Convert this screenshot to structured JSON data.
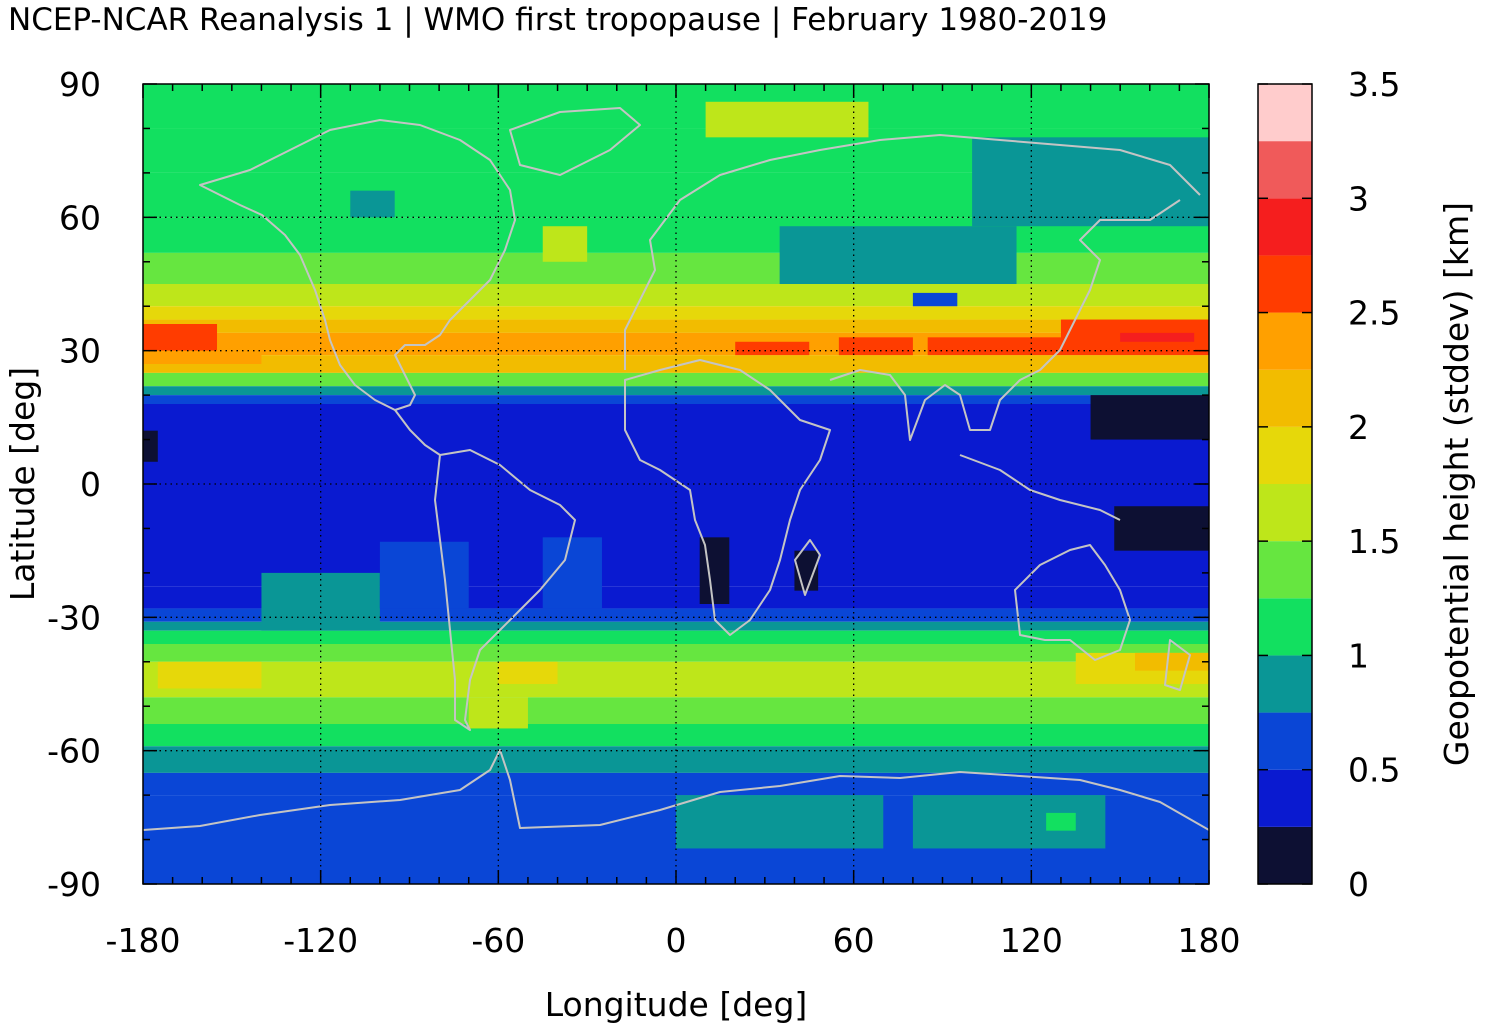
{
  "chart_data": {
    "type": "heatmap",
    "title": "NCEP-NCAR Reanalysis 1 | WMO first tropopause | February 1980-2019",
    "xlabel": "Longitude [deg]",
    "ylabel": "Latitude [deg]",
    "colorbar_label": "Geopotential height (stddev) [km]",
    "xlim": [
      -180,
      180
    ],
    "ylim": [
      -90,
      90
    ],
    "x_ticks": [
      "-180",
      "-120",
      "-60",
      "0",
      "60",
      "120",
      "180"
    ],
    "y_ticks": [
      "90",
      "60",
      "30",
      "0",
      "-30",
      "-60",
      "-90"
    ],
    "colorbar_ticks": [
      "3.5",
      "3",
      "2.5",
      "2",
      "1.5",
      "1",
      "0.5",
      "0"
    ],
    "colorbar_range": [
      0,
      3.5
    ],
    "colorbar_levels": [
      {
        "range": [
          0.0,
          0.25
        ],
        "color": "#0d1033"
      },
      {
        "range": [
          0.25,
          0.5
        ],
        "color": "#0a1ad0"
      },
      {
        "range": [
          0.5,
          0.75
        ],
        "color": "#0a46d6"
      },
      {
        "range": [
          0.75,
          1.0
        ],
        "color": "#0a9696"
      },
      {
        "range": [
          1.0,
          1.25
        ],
        "color": "#12e060"
      },
      {
        "range": [
          1.25,
          1.5
        ],
        "color": "#66e640"
      },
      {
        "range": [
          1.5,
          1.75
        ],
        "color": "#bee61a"
      },
      {
        "range": [
          1.75,
          2.0
        ],
        "color": "#e6d80a"
      },
      {
        "range": [
          2.0,
          2.25
        ],
        "color": "#f2bc00"
      },
      {
        "range": [
          2.25,
          2.5
        ],
        "color": "#ffa000"
      },
      {
        "range": [
          2.5,
          2.75
        ],
        "color": "#ff3c00"
      },
      {
        "range": [
          2.75,
          3.0
        ],
        "color": "#f51e1e"
      },
      {
        "range": [
          3.0,
          3.25
        ],
        "color": "#f05a5a"
      },
      {
        "range": [
          3.25,
          3.5
        ],
        "color": "#ffcccc"
      }
    ],
    "zonal_bands": [
      {
        "lat": [
          80,
          90
        ],
        "value": 1.1
      },
      {
        "lat": [
          70,
          80
        ],
        "value": 1.15
      },
      {
        "lat": [
          60,
          70
        ],
        "value": 1.2
      },
      {
        "lat": [
          52,
          60
        ],
        "value": 1.15
      },
      {
        "lat": [
          45,
          52
        ],
        "value": 1.3
      },
      {
        "lat": [
          40,
          45
        ],
        "value": 1.6
      },
      {
        "lat": [
          37,
          40
        ],
        "value": 1.9
      },
      {
        "lat": [
          34,
          37
        ],
        "value": 2.1
      },
      {
        "lat": [
          29,
          34
        ],
        "value": 2.4
      },
      {
        "lat": [
          25,
          29
        ],
        "value": 2.05
      },
      {
        "lat": [
          22,
          25
        ],
        "value": 1.4
      },
      {
        "lat": [
          20,
          22
        ],
        "value": 0.85
      },
      {
        "lat": [
          18,
          20
        ],
        "value": 0.6
      },
      {
        "lat": [
          -23,
          18
        ],
        "value": 0.4
      },
      {
        "lat": [
          -28,
          -23
        ],
        "value": 0.45
      },
      {
        "lat": [
          -31,
          -28
        ],
        "value": 0.6
      },
      {
        "lat": [
          -33,
          -31
        ],
        "value": 0.85
      },
      {
        "lat": [
          -36,
          -33
        ],
        "value": 1.15
      },
      {
        "lat": [
          -40,
          -36
        ],
        "value": 1.4
      },
      {
        "lat": [
          -48,
          -40
        ],
        "value": 1.6
      },
      {
        "lat": [
          -54,
          -48
        ],
        "value": 1.4
      },
      {
        "lat": [
          -59,
          -54
        ],
        "value": 1.15
      },
      {
        "lat": [
          -65,
          -59
        ],
        "value": 0.9
      },
      {
        "lat": [
          -70,
          -65
        ],
        "value": 0.6
      },
      {
        "lat": [
          -90,
          -70
        ],
        "value": 0.55
      }
    ],
    "regional_features": [
      {
        "lon": [
          -180,
          -155
        ],
        "lat": [
          30,
          36
        ],
        "value": 2.6
      },
      {
        "lon": [
          -180,
          -140
        ],
        "lat": [
          27,
          30
        ],
        "value": 2.3
      },
      {
        "lon": [
          20,
          45
        ],
        "lat": [
          29,
          32
        ],
        "value": 2.6
      },
      {
        "lon": [
          55,
          80
        ],
        "lat": [
          29,
          33
        ],
        "value": 2.6
      },
      {
        "lon": [
          85,
          130
        ],
        "lat": [
          29,
          33
        ],
        "value": 2.6
      },
      {
        "lon": [
          130,
          180
        ],
        "lat": [
          29,
          37
        ],
        "value": 2.6
      },
      {
        "lon": [
          150,
          175
        ],
        "lat": [
          32,
          34
        ],
        "value": 2.9
      },
      {
        "lon": [
          35,
          115
        ],
        "lat": [
          45,
          58
        ],
        "value": 0.85
      },
      {
        "lon": [
          100,
          180
        ],
        "lat": [
          58,
          78
        ],
        "value": 0.9
      },
      {
        "lon": [
          80,
          95
        ],
        "lat": [
          40,
          43
        ],
        "value": 0.6
      },
      {
        "lon": [
          -110,
          -95
        ],
        "lat": [
          60,
          66
        ],
        "value": 0.9
      },
      {
        "lon": [
          10,
          65
        ],
        "lat": [
          78,
          86
        ],
        "value": 1.55
      },
      {
        "lon": [
          -45,
          -30
        ],
        "lat": [
          50,
          58
        ],
        "value": 1.6
      },
      {
        "lon": [
          -180,
          -175
        ],
        "lat": [
          5,
          12
        ],
        "value": 0.15
      },
      {
        "lon": [
          140,
          180
        ],
        "lat": [
          10,
          20
        ],
        "value": 0.15
      },
      {
        "lon": [
          148,
          180
        ],
        "lat": [
          -15,
          -5
        ],
        "value": 0.15
      },
      {
        "lon": [
          8,
          18
        ],
        "lat": [
          -27,
          -12
        ],
        "value": 0.15
      },
      {
        "lon": [
          40,
          48
        ],
        "lat": [
          -24,
          -15
        ],
        "value": 0.15
      },
      {
        "lon": [
          -140,
          -100
        ],
        "lat": [
          -33,
          -20
        ],
        "value": 0.9
      },
      {
        "lon": [
          -100,
          -70
        ],
        "lat": [
          -28,
          -13
        ],
        "value": 0.55
      },
      {
        "lon": [
          -45,
          -25
        ],
        "lat": [
          -28,
          -12
        ],
        "value": 0.55
      },
      {
        "lon": [
          -175,
          -140
        ],
        "lat": [
          -46,
          -40
        ],
        "value": 1.85
      },
      {
        "lon": [
          -60,
          -40
        ],
        "lat": [
          -45,
          -40
        ],
        "value": 1.85
      },
      {
        "lon": [
          135,
          180
        ],
        "lat": [
          -45,
          -38
        ],
        "value": 1.85
      },
      {
        "lon": [
          155,
          180
        ],
        "lat": [
          -42,
          -38
        ],
        "value": 2.05
      },
      {
        "lon": [
          -70,
          -50
        ],
        "lat": [
          -55,
          -48
        ],
        "value": 1.6
      },
      {
        "lon": [
          0,
          70
        ],
        "lat": [
          -82,
          -70
        ],
        "value": 0.9
      },
      {
        "lon": [
          80,
          145
        ],
        "lat": [
          -82,
          -70
        ],
        "value": 0.9
      },
      {
        "lon": [
          125,
          135
        ],
        "lat": [
          -78,
          -74
        ],
        "value": 1.15
      }
    ]
  }
}
